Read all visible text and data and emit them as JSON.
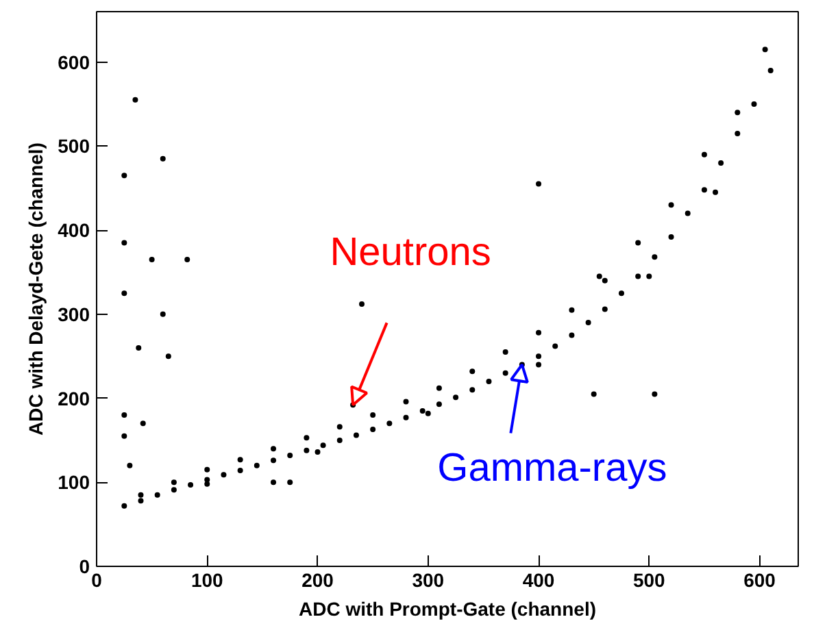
{
  "chart_data": {
    "type": "scatter",
    "xlabel": "ADC with Prompt-Gate (channel)",
    "ylabel": "ADC with Delayd-Gete (channel)",
    "xlim": [
      0,
      635
    ],
    "ylim": [
      0,
      660
    ],
    "xticks": [
      0,
      100,
      200,
      300,
      400,
      500,
      600
    ],
    "yticks": [
      0,
      100,
      200,
      300,
      400,
      500,
      600
    ],
    "grid": false,
    "marker": "circle",
    "annotations": [
      {
        "text": "Neutrons",
        "x": 232,
        "y": 192
      },
      {
        "text": "Gamma-rays",
        "x": 385,
        "y": 240
      }
    ],
    "series": [
      {
        "color": "#000000",
        "x": [
          25,
          40,
          55,
          70,
          85,
          100,
          115,
          130,
          145,
          160,
          175,
          190,
          205,
          220,
          235,
          250,
          265,
          280,
          295,
          310,
          325,
          340,
          355,
          370,
          385,
          400,
          415,
          430,
          445,
          460,
          475,
          490,
          505,
          520,
          535,
          550,
          565,
          580,
          595,
          610,
          40,
          70,
          100,
          130,
          160,
          190,
          220,
          250,
          280,
          310,
          340,
          370,
          400,
          430,
          460,
          490,
          520,
          550,
          580,
          605,
          100,
          200,
          300,
          400,
          500,
          560,
          35,
          25,
          60,
          25,
          50,
          82,
          25,
          60,
          38,
          65,
          25,
          25,
          42,
          30,
          240,
          400,
          455,
          450,
          505,
          160,
          175,
          232
        ],
        "values": [
          72,
          78,
          85,
          91,
          97,
          103,
          109,
          114,
          120,
          126,
          132,
          138,
          144,
          150,
          156,
          163,
          170,
          177,
          185,
          193,
          201,
          210,
          220,
          230,
          240,
          250,
          262,
          275,
          290,
          306,
          325,
          345,
          368,
          392,
          420,
          448,
          480,
          515,
          550,
          590,
          85,
          100,
          115,
          127,
          140,
          153,
          166,
          180,
          196,
          212,
          232,
          255,
          278,
          305,
          340,
          385,
          430,
          490,
          540,
          615,
          98,
          136,
          182,
          240,
          345,
          445,
          555,
          465,
          485,
          385,
          365,
          365,
          325,
          300,
          260,
          250,
          180,
          155,
          170,
          120,
          312,
          455,
          345,
          205,
          205,
          100,
          100,
          192
        ]
      }
    ]
  }
}
